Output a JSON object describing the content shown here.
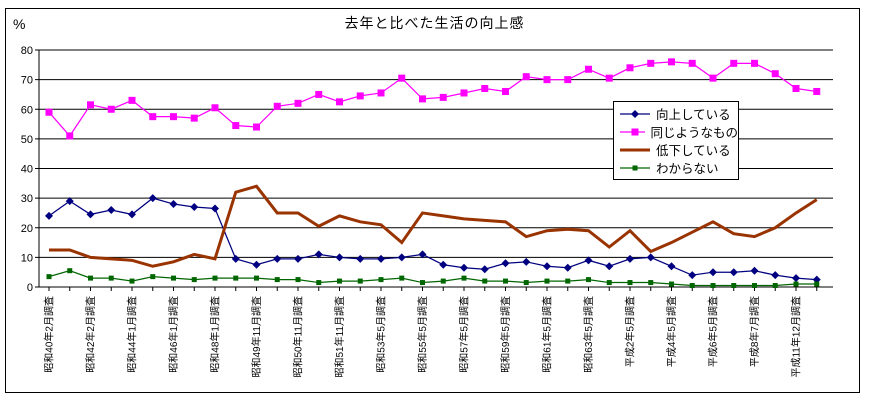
{
  "chart_data": {
    "type": "line",
    "title": "去年と比べた生活の向上感",
    "y_axis": {
      "unit_label": "%",
      "min": 0,
      "max": 80,
      "tick_step": 10,
      "tick_labels": [
        "0",
        "10",
        "20",
        "30",
        "40",
        "50",
        "60",
        "70",
        "80"
      ]
    },
    "grid": "horizontal",
    "legend_position": "middle-right-overlay",
    "x_categories": [
      "昭和40年2月調査",
      "",
      "昭和42年2月調査",
      "",
      "昭和44年1月調査",
      "",
      "昭和46年1月調査",
      "",
      "昭和48年1月調査",
      "",
      "昭和49年11月調査",
      "",
      "昭和50年11月調査",
      "",
      "昭和51年11月調査",
      "",
      "昭和53年5月調査",
      "",
      "昭和55年5月調査",
      "",
      "昭和57年5月調査",
      "",
      "昭和59年5月調査",
      "",
      "昭和61年5月調査",
      "",
      "昭和63年5月調査",
      "",
      "平成2年5月調査",
      "",
      "平成4年5月調査",
      "",
      "平成6年5月調査",
      "",
      "平成8年7月調査",
      "",
      "平成11年12月調査",
      ""
    ],
    "series": [
      {
        "name": "向上している",
        "color": "#000080",
        "marker": "diamond",
        "line_width": 1.25,
        "values": [
          24,
          29,
          24.5,
          26,
          24.5,
          30,
          28,
          27,
          26.5,
          9.5,
          7.5,
          9.5,
          9.5,
          11,
          10,
          9.5,
          9.5,
          10,
          11,
          7.5,
          6.5,
          6,
          8,
          8.5,
          7,
          6.5,
          9,
          7,
          9.5,
          10,
          7,
          4,
          5,
          5,
          5.5,
          4,
          3,
          2.5
        ]
      },
      {
        "name": "同じようなもの",
        "color": "#FF00FF",
        "marker": "square",
        "line_width": 1.25,
        "values": [
          59,
          51,
          61.5,
          60,
          63,
          57.5,
          57.5,
          57,
          60.5,
          54.5,
          54,
          61,
          62,
          65,
          62.5,
          64.5,
          65.5,
          70.5,
          63.5,
          64,
          65.5,
          67,
          66,
          71,
          70,
          70,
          73.5,
          70.5,
          74,
          75.5,
          76,
          75.5,
          70.5,
          75.5,
          75.5,
          72,
          67,
          66
        ]
      },
      {
        "name": "低下している",
        "color": "#993300",
        "marker": "none",
        "line_width": 3,
        "values": [
          12.5,
          12.5,
          10,
          9.5,
          9,
          7,
          8.5,
          11,
          9.5,
          32,
          34,
          25,
          25,
          20.5,
          24,
          22,
          21,
          15,
          25,
          24,
          23,
          22.5,
          22,
          17,
          19,
          19.5,
          19,
          13.5,
          19,
          12,
          15,
          18.5,
          22,
          18,
          17,
          20,
          25,
          29.5
        ]
      },
      {
        "name": "わからない",
        "color": "#006600",
        "marker": "square-small",
        "line_width": 1.25,
        "values": [
          3.5,
          5.5,
          3,
          3,
          2,
          3.5,
          3,
          2.5,
          3,
          3,
          3,
          2.5,
          2.5,
          1.5,
          2,
          2,
          2.5,
          3,
          1.5,
          2,
          3,
          2,
          2,
          1.5,
          2,
          2,
          2.5,
          1.5,
          1.5,
          1.5,
          1,
          0.5,
          0.5,
          0.5,
          0.5,
          0.5,
          1,
          1
        ]
      }
    ]
  }
}
